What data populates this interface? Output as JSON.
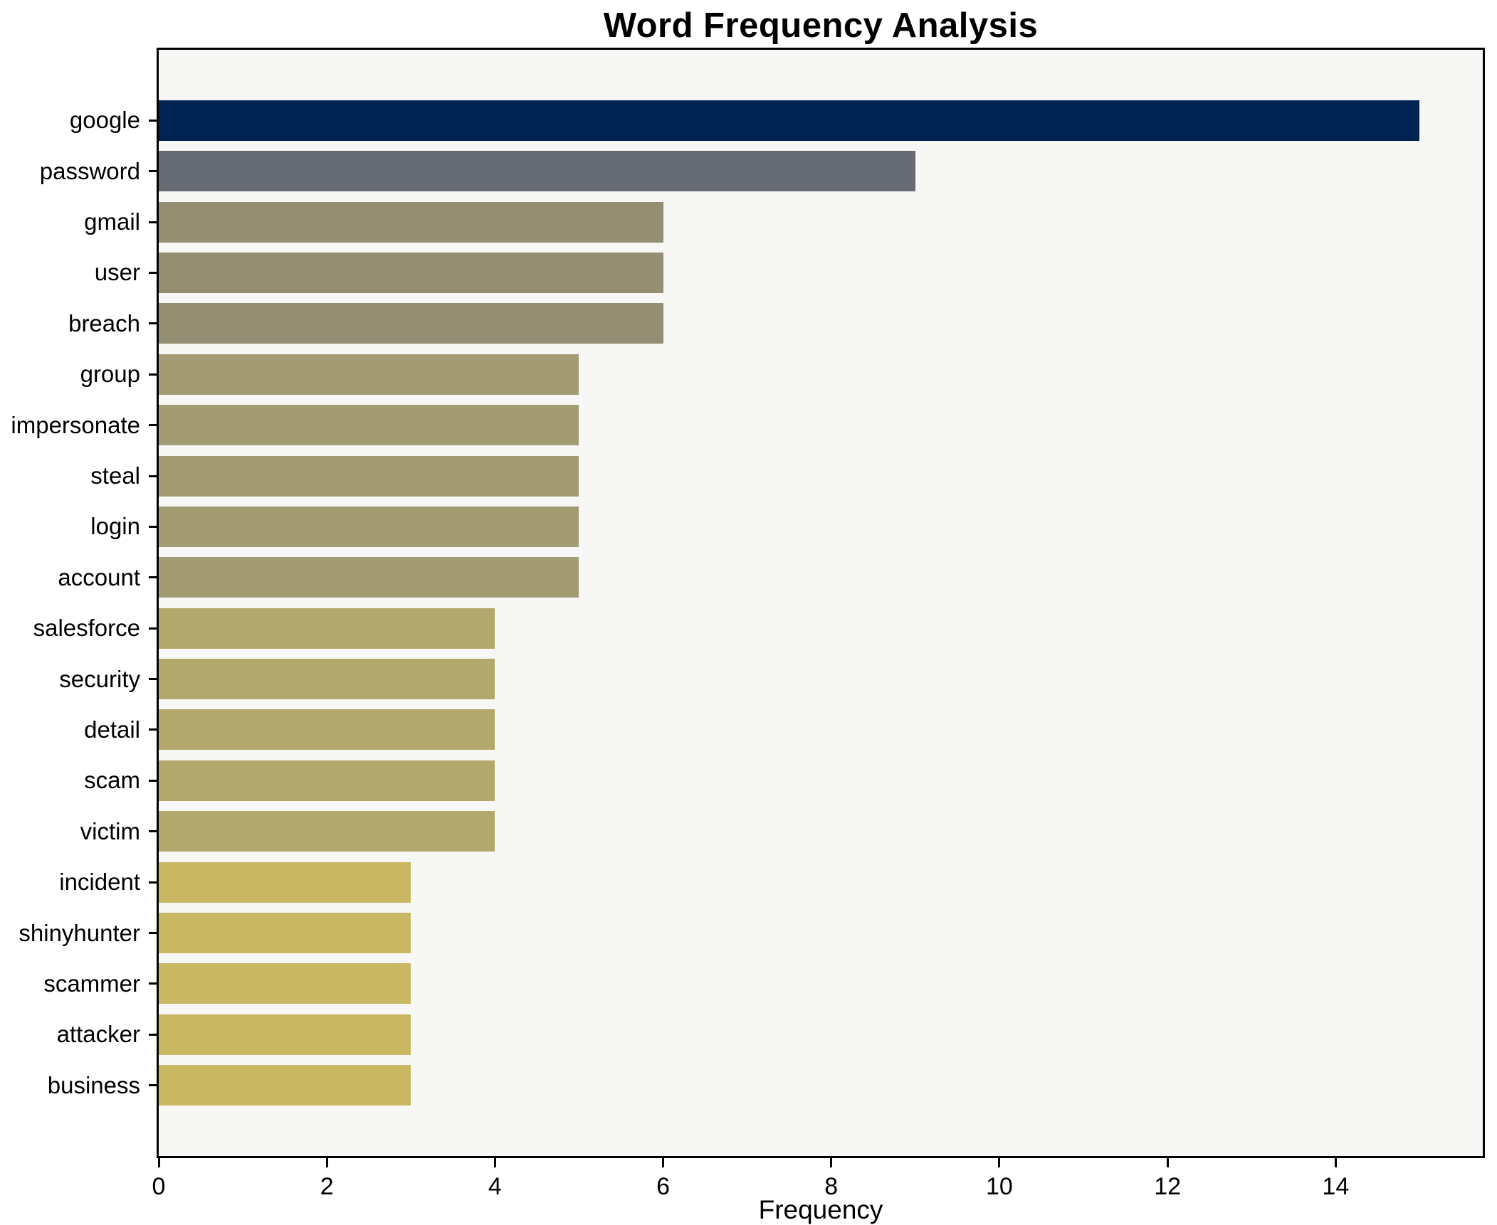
{
  "chart_data": {
    "type": "bar",
    "orientation": "horizontal",
    "title": "Word Frequency Analysis",
    "xlabel": "Frequency",
    "ylabel": "",
    "categories": [
      "google",
      "password",
      "gmail",
      "user",
      "breach",
      "group",
      "impersonate",
      "steal",
      "login",
      "account",
      "salesforce",
      "security",
      "detail",
      "scam",
      "victim",
      "incident",
      "shinyhunter",
      "scammer",
      "attacker",
      "business"
    ],
    "values": [
      15,
      9,
      6,
      6,
      6,
      5,
      5,
      5,
      5,
      5,
      4,
      4,
      4,
      4,
      4,
      3,
      3,
      3,
      3,
      3
    ],
    "bar_colors": [
      "#002451",
      "#666a73",
      "#948e73",
      "#948e73",
      "#948e73",
      "#a39c73",
      "#a39c73",
      "#a39c73",
      "#a39c73",
      "#a39c73",
      "#b3a86c",
      "#b3a86c",
      "#b3a86c",
      "#b3a86c",
      "#b3a86c",
      "#c9b764",
      "#c9b764",
      "#c9b764",
      "#c9b764",
      "#c9b764"
    ],
    "xticks": [
      0,
      2,
      4,
      6,
      8,
      10,
      12,
      14
    ],
    "xlim": [
      0,
      15.75
    ],
    "grid": false,
    "legend": null,
    "colors": {
      "figure_bg": "#ffffff",
      "plot_bg": "#f7f7f5",
      "spine": "#000000",
      "text": "#000000"
    }
  }
}
